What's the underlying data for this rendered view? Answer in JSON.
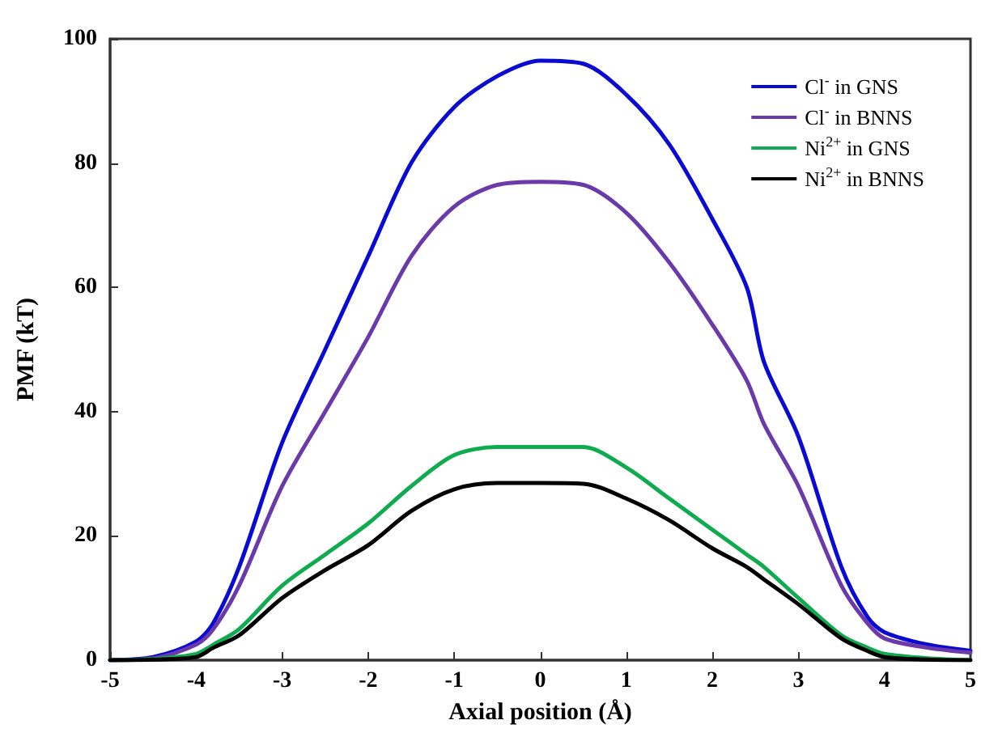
{
  "chart_data": {
    "type": "line",
    "xlabel": "Axial position (Å)",
    "ylabel": "PMF (kT)",
    "x": [
      -5,
      -4.5,
      -4,
      -3.8,
      -3.5,
      -3,
      -2.5,
      -2,
      -1.5,
      -1,
      -0.5,
      0,
      0.5,
      1,
      1.5,
      2,
      2.4,
      2.6,
      3,
      3.5,
      3.8,
      4,
      4.5,
      5
    ],
    "series": [
      {
        "name": "Cl$^{-}$ in GNS",
        "color": "#0a0ad2",
        "values": [
          0,
          0.5,
          3,
          6,
          15,
          35,
          50,
          65,
          80,
          89,
          94,
          96.5,
          96,
          91,
          83,
          71,
          60,
          48,
          36,
          15,
          7,
          4.5,
          2.5,
          1.5
        ]
      },
      {
        "name": "Cl$^{-}$ in BNNS",
        "color": "#6a3aaa",
        "values": [
          0,
          0.3,
          2.5,
          5,
          12,
          28,
          40,
          52,
          65,
          73,
          76.5,
          77,
          76.5,
          72,
          64,
          54,
          45,
          38,
          28,
          12,
          6,
          3.5,
          2,
          1.2
        ]
      },
      {
        "name": "Ni$^{2+}$ in GNS",
        "color": "#10aa50",
        "values": [
          0,
          0.2,
          1,
          2.5,
          5,
          12,
          17,
          22,
          28,
          33,
          34.3,
          34.3,
          34.3,
          31,
          26,
          21,
          17,
          15,
          10,
          4,
          2,
          1,
          0.3,
          0
        ]
      },
      {
        "name": "Ni$^{2+}$ in BNNS",
        "color": "#000000",
        "values": [
          0,
          0.1,
          0.5,
          2,
          4,
          10,
          14.5,
          18.5,
          24,
          27.5,
          28.5,
          28.5,
          28.4,
          26,
          22.5,
          18,
          15,
          13,
          9,
          3.5,
          1.5,
          0.5,
          0.1,
          0
        ]
      }
    ],
    "xlim": [
      -5,
      5
    ],
    "xticks": [
      -5,
      -4,
      -3,
      -2,
      -1,
      0,
      1,
      2,
      3,
      4,
      5
    ],
    "ylim": [
      0,
      100
    ],
    "yticks": [
      0,
      20,
      40,
      60,
      80,
      100
    ],
    "grid": false,
    "legend": "top right",
    "marker": "none",
    "line_style": "solid"
  }
}
